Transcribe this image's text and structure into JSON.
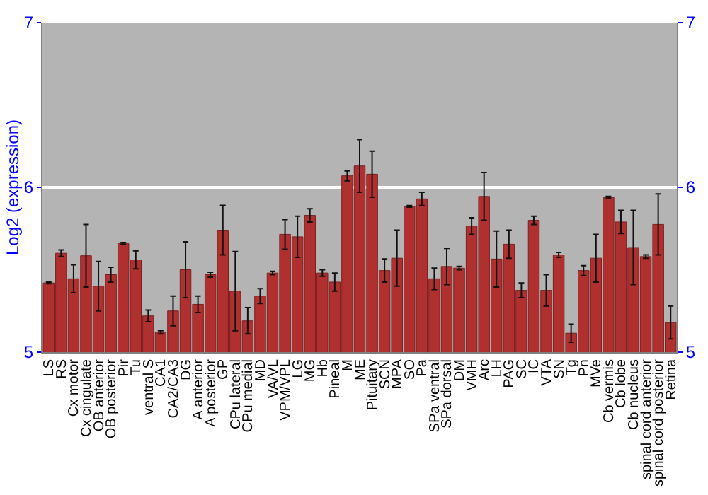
{
  "chart_data": {
    "type": "bar",
    "ylabel": "Log2 (expression)",
    "categories": [
      "LS",
      "RS",
      "Cx motor",
      "Cx cingulate",
      "OB anterior",
      "OB posterior",
      "Pir",
      "Tu",
      "ventral S",
      "CA1",
      "CA2/CA3",
      "DG",
      "A anterior",
      "A posterior",
      "GP",
      "CPu lateral",
      "CPu medial",
      "MD",
      "VA/VL",
      "VPM/VPL",
      "LG",
      "MG",
      "Hb",
      "Pineal",
      "M",
      "ME",
      "Pituitary",
      "SCN",
      "MPA",
      "SO",
      "Pa",
      "SPa ventral",
      "SPa dorsal",
      "DM",
      "VMH",
      "Arc",
      "LH",
      "PAG",
      "SC",
      "IC",
      "VTA",
      "SN",
      "Tg",
      "Pn",
      "MVe",
      "Cb vermis",
      "Cb lobe",
      "Cb nucleus",
      "spinal cord anterior",
      "spinal cord posterior",
      "Retina"
    ],
    "series": [
      {
        "color": "#b03030",
        "values": [
          5.42,
          5.6,
          5.445,
          5.585,
          5.4,
          5.47,
          5.66,
          5.56,
          5.22,
          5.12,
          5.25,
          5.5,
          5.29,
          5.47,
          5.74,
          5.37,
          5.19,
          5.34,
          5.48,
          5.715,
          5.7,
          5.83,
          5.48,
          5.425,
          6.07,
          6.13,
          6.08,
          5.495,
          5.57,
          5.885,
          5.93,
          5.445,
          5.52,
          5.51,
          5.765,
          5.945,
          5.565,
          5.655,
          5.375,
          5.8,
          5.375,
          5.59,
          5.115,
          5.495,
          5.57,
          5.94,
          5.79,
          5.635,
          5.58,
          5.775,
          5.18
        ],
        "errors": [
          0.005,
          0.02,
          0.085,
          0.19,
          0.15,
          0.045,
          0.005,
          0.055,
          0.035,
          0.01,
          0.09,
          0.17,
          0.05,
          0.015,
          0.15,
          0.24,
          0.08,
          0.045,
          0.01,
          0.09,
          0.125,
          0.04,
          0.02,
          0.055,
          0.03,
          0.16,
          0.14,
          0.07,
          0.17,
          0.005,
          0.04,
          0.065,
          0.11,
          0.01,
          0.05,
          0.145,
          0.17,
          0.085,
          0.045,
          0.025,
          0.095,
          0.015,
          0.055,
          0.03,
          0.145,
          0.005,
          0.07,
          0.225,
          0.01,
          0.185,
          0.1
        ]
      }
    ],
    "ylim": [
      5,
      7
    ],
    "yticks": [
      5,
      6,
      7
    ],
    "y2lim": [
      5,
      7
    ],
    "y2ticks": [
      5,
      6,
      7
    ],
    "grid": "y"
  }
}
